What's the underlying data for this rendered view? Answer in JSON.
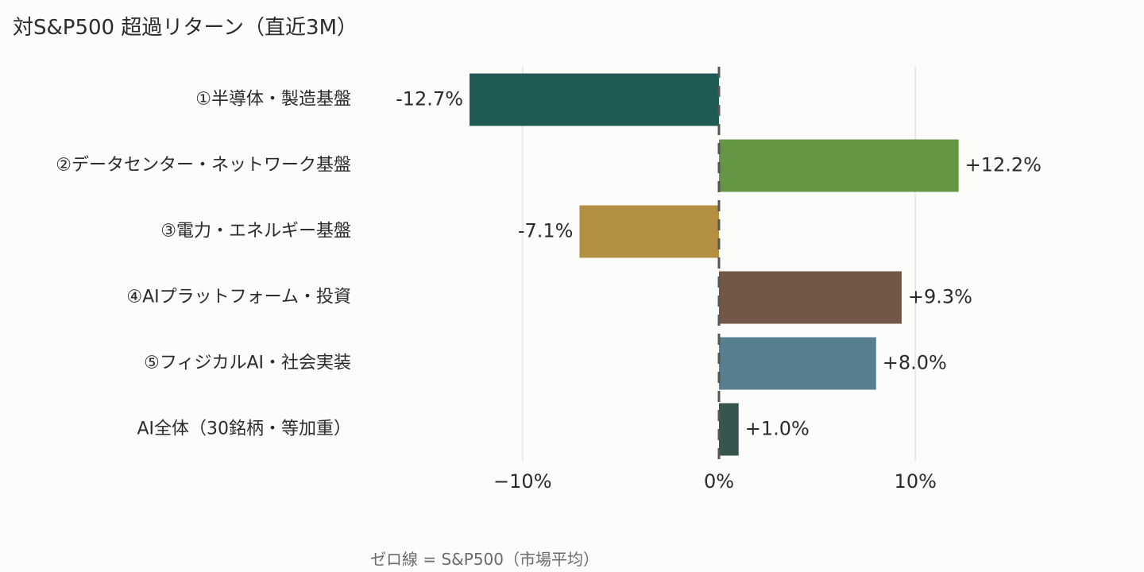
{
  "title": "対S&P500 超過リターン（直近3M）",
  "note": "ゼロ線 = S&P500（市場平均）",
  "colors": {
    "background": "#fcfcfa",
    "grid": "#e8e8e4",
    "zero_line": "#555555"
  },
  "chart_data": {
    "type": "bar",
    "orientation": "horizontal",
    "title": "対S&P500 超過リターン（直近3M）",
    "categories": [
      "①半導体・製造基盤",
      "②データセンター・ネットワーク基盤",
      "③電力・エネルギー基盤",
      "④AIプラットフォーム・投資",
      "⑤フィジカルAI・社会実装",
      "AI全体（30銘柄・等加重）"
    ],
    "values": [
      -12.7,
      12.2,
      -7.1,
      9.3,
      8.0,
      1.0
    ],
    "value_labels": [
      "-12.7%",
      "+12.2%",
      "-7.1%",
      "+9.3%",
      "+8.0%",
      "+1.0%"
    ],
    "bar_colors": [
      "#1f5a55",
      "#659644",
      "#b38f44",
      "#725748",
      "#56808e",
      "#36554f"
    ],
    "xlim": [
      -18,
      18
    ],
    "xticks": [
      -10,
      0,
      10
    ],
    "xtick_labels": [
      "−10%",
      "0%",
      "10%"
    ],
    "xlabel": "",
    "ylabel": "",
    "grid": true,
    "zero_line": "dashed"
  }
}
